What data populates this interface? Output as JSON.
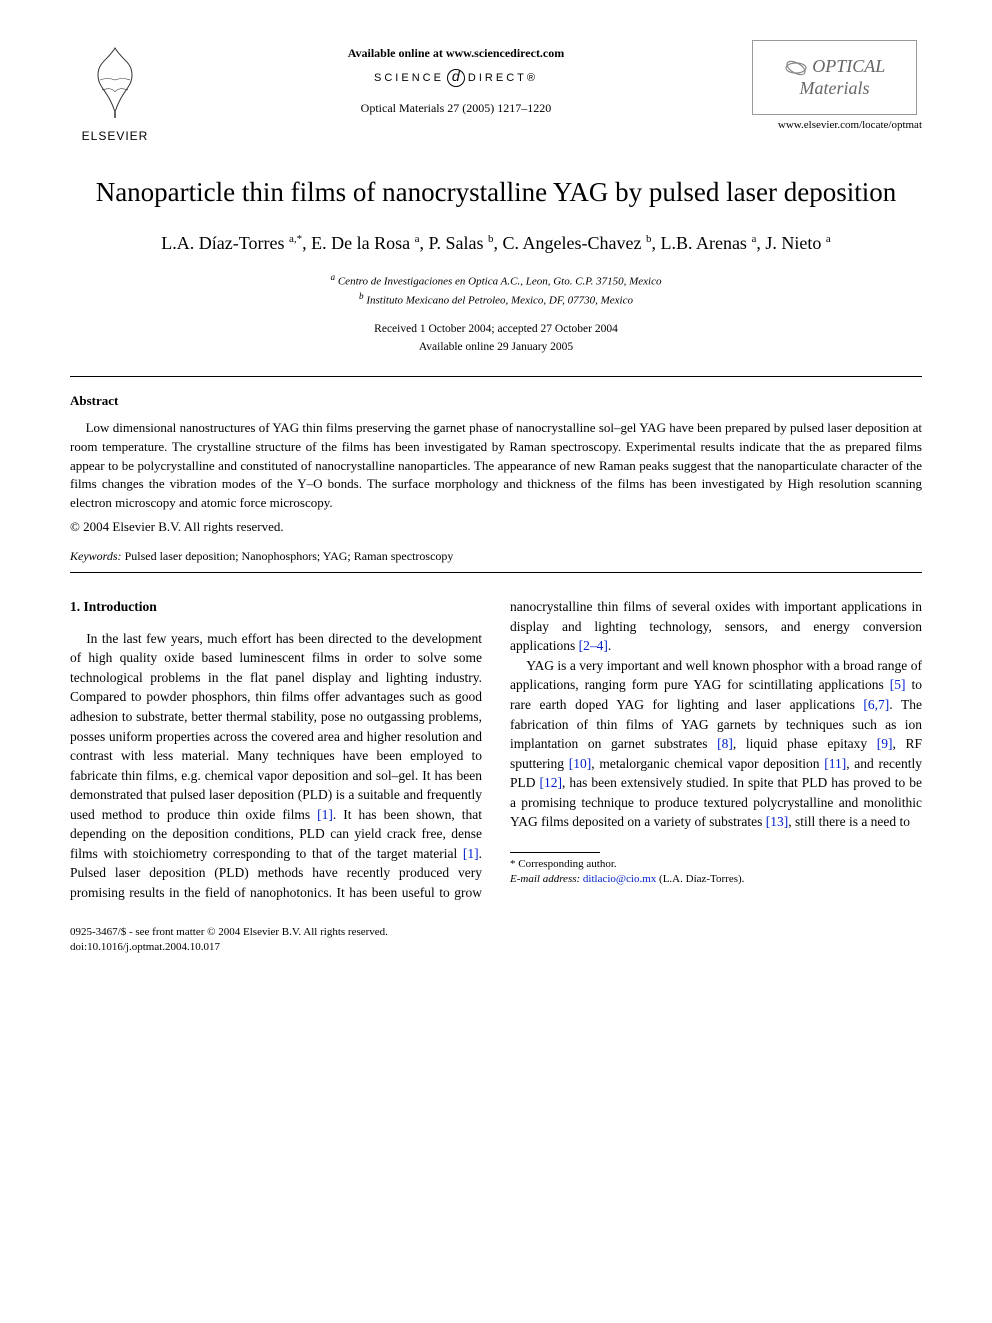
{
  "header": {
    "publisher_name": "ELSEVIER",
    "available_text": "Available online at www.sciencedirect.com",
    "sciencedirect_left": "SCIENCE",
    "sciencedirect_right": "DIRECT®",
    "citation": "Optical Materials 27 (2005) 1217–1220",
    "journal_line1": "OPTICAL",
    "journal_line2": "Materials",
    "journal_url": "www.elsevier.com/locate/optmat"
  },
  "title": "Nanoparticle thin films of nanocrystalline YAG by pulsed laser deposition",
  "authors_html": "L.A. Díaz-Torres <span class='sup'>a,*</span>, E. De la Rosa <span class='sup'>a</span>, P. Salas <span class='sup'>b</span>, C. Angeles-Chavez <span class='sup'>b</span>, L.B. Arenas <span class='sup'>a</span>, J. Nieto <span class='sup'>a</span>",
  "affiliations": {
    "a": "Centro de Investigaciones en Optica A.C., Leon, Gto. C.P. 37150, Mexico",
    "b": "Instituto Mexicano del Petroleo, Mexico, DF, 07730, Mexico"
  },
  "dates": {
    "received_accepted": "Received 1 October 2004; accepted 27 October 2004",
    "online": "Available online 29 January 2005"
  },
  "abstract": {
    "heading": "Abstract",
    "text": "Low dimensional nanostructures of YAG thin films preserving the garnet phase of nanocrystalline sol–gel YAG have been prepared by pulsed laser deposition at room temperature. The crystalline structure of the films has been investigated by Raman spectroscopy. Experimental results indicate that the as prepared films appear to be polycrystalline and constituted of nanocrystalline nanoparticles. The appearance of new Raman peaks suggest that the nanoparticulate character of the films changes the vibration modes of the Y–O bonds. The surface morphology and thickness of the films has been investigated by High resolution scanning electron microscopy and atomic force microscopy.",
    "copyright": "© 2004 Elsevier B.V. All rights reserved."
  },
  "keywords": {
    "label": "Keywords:",
    "text": " Pulsed laser deposition; Nanophosphors; YAG; Raman spectroscopy"
  },
  "section1": {
    "heading": "1. Introduction",
    "para1_a": "In the last few years, much effort has been directed to the development of high quality oxide based luminescent films in order to solve some technological problems in the flat panel display and lighting industry. Compared to powder phosphors, thin films offer advantages such as good adhesion to substrate, better thermal stability, pose no outgassing problems, posses uniform properties across the covered area and higher resolution and contrast with less material. Many techniques have been employed to fabricate thin films, e.g. chemical vapor deposition and sol–gel. It has been demonstrated that pulsed laser deposition (PLD) is a suitable and frequently used method to produce thin oxide films ",
    "ref1": "[1]",
    "para1_b": ". It has been shown, that depending on the deposition con",
    "para1_c": "ditions, PLD can yield crack free, dense films with stoichiometry corresponding to that of the target material ",
    "ref1b": "[1]",
    "para1_d": ". Pulsed laser deposition (PLD) methods have recently produced very promising results in the field of nanophotonics. It has been useful to grow nanocrystalline thin films of several oxides with important applications in display and lighting technology, sensors, and energy conversion applications ",
    "ref24": "[2–4]",
    "para1_e": ".",
    "para2_a": "YAG is a very important and well known phosphor with a broad range of applications, ranging form pure YAG for scintillating applications ",
    "ref5": "[5]",
    "para2_b": " to rare earth doped YAG for lighting and laser applications ",
    "ref67": "[6,7]",
    "para2_c": ". The fabrication of thin films of YAG garnets by techniques such as ion implantation on garnet substrates ",
    "ref8": "[8]",
    "para2_d": ", liquid phase epitaxy ",
    "ref9": "[9]",
    "para2_e": ", RF sputtering ",
    "ref10": "[10]",
    "para2_f": ", metalorganic chemical vapor deposition ",
    "ref11": "[11]",
    "para2_g": ", and recently PLD ",
    "ref12": "[12]",
    "para2_h": ", has been extensively studied. In spite that PLD has proved to be a promising technique to produce textured polycrystalline and monolithic YAG films deposited on a variety of substrates ",
    "ref13": "[13]",
    "para2_i": ", still there is a need to"
  },
  "footnote": {
    "corr_label": "* Corresponding author.",
    "email_label": "E-mail address:",
    "email": "ditlacio@cio.mx",
    "email_author": " (L.A. Díaz-Torres)."
  },
  "footer": {
    "line1": "0925-3467/$ - see front matter © 2004 Elsevier B.V. All rights reserved.",
    "line2": "doi:10.1016/j.optmat.2004.10.017"
  },
  "colors": {
    "text": "#000000",
    "link": "#0020cc",
    "background": "#ffffff",
    "logo_border": "#999999"
  }
}
